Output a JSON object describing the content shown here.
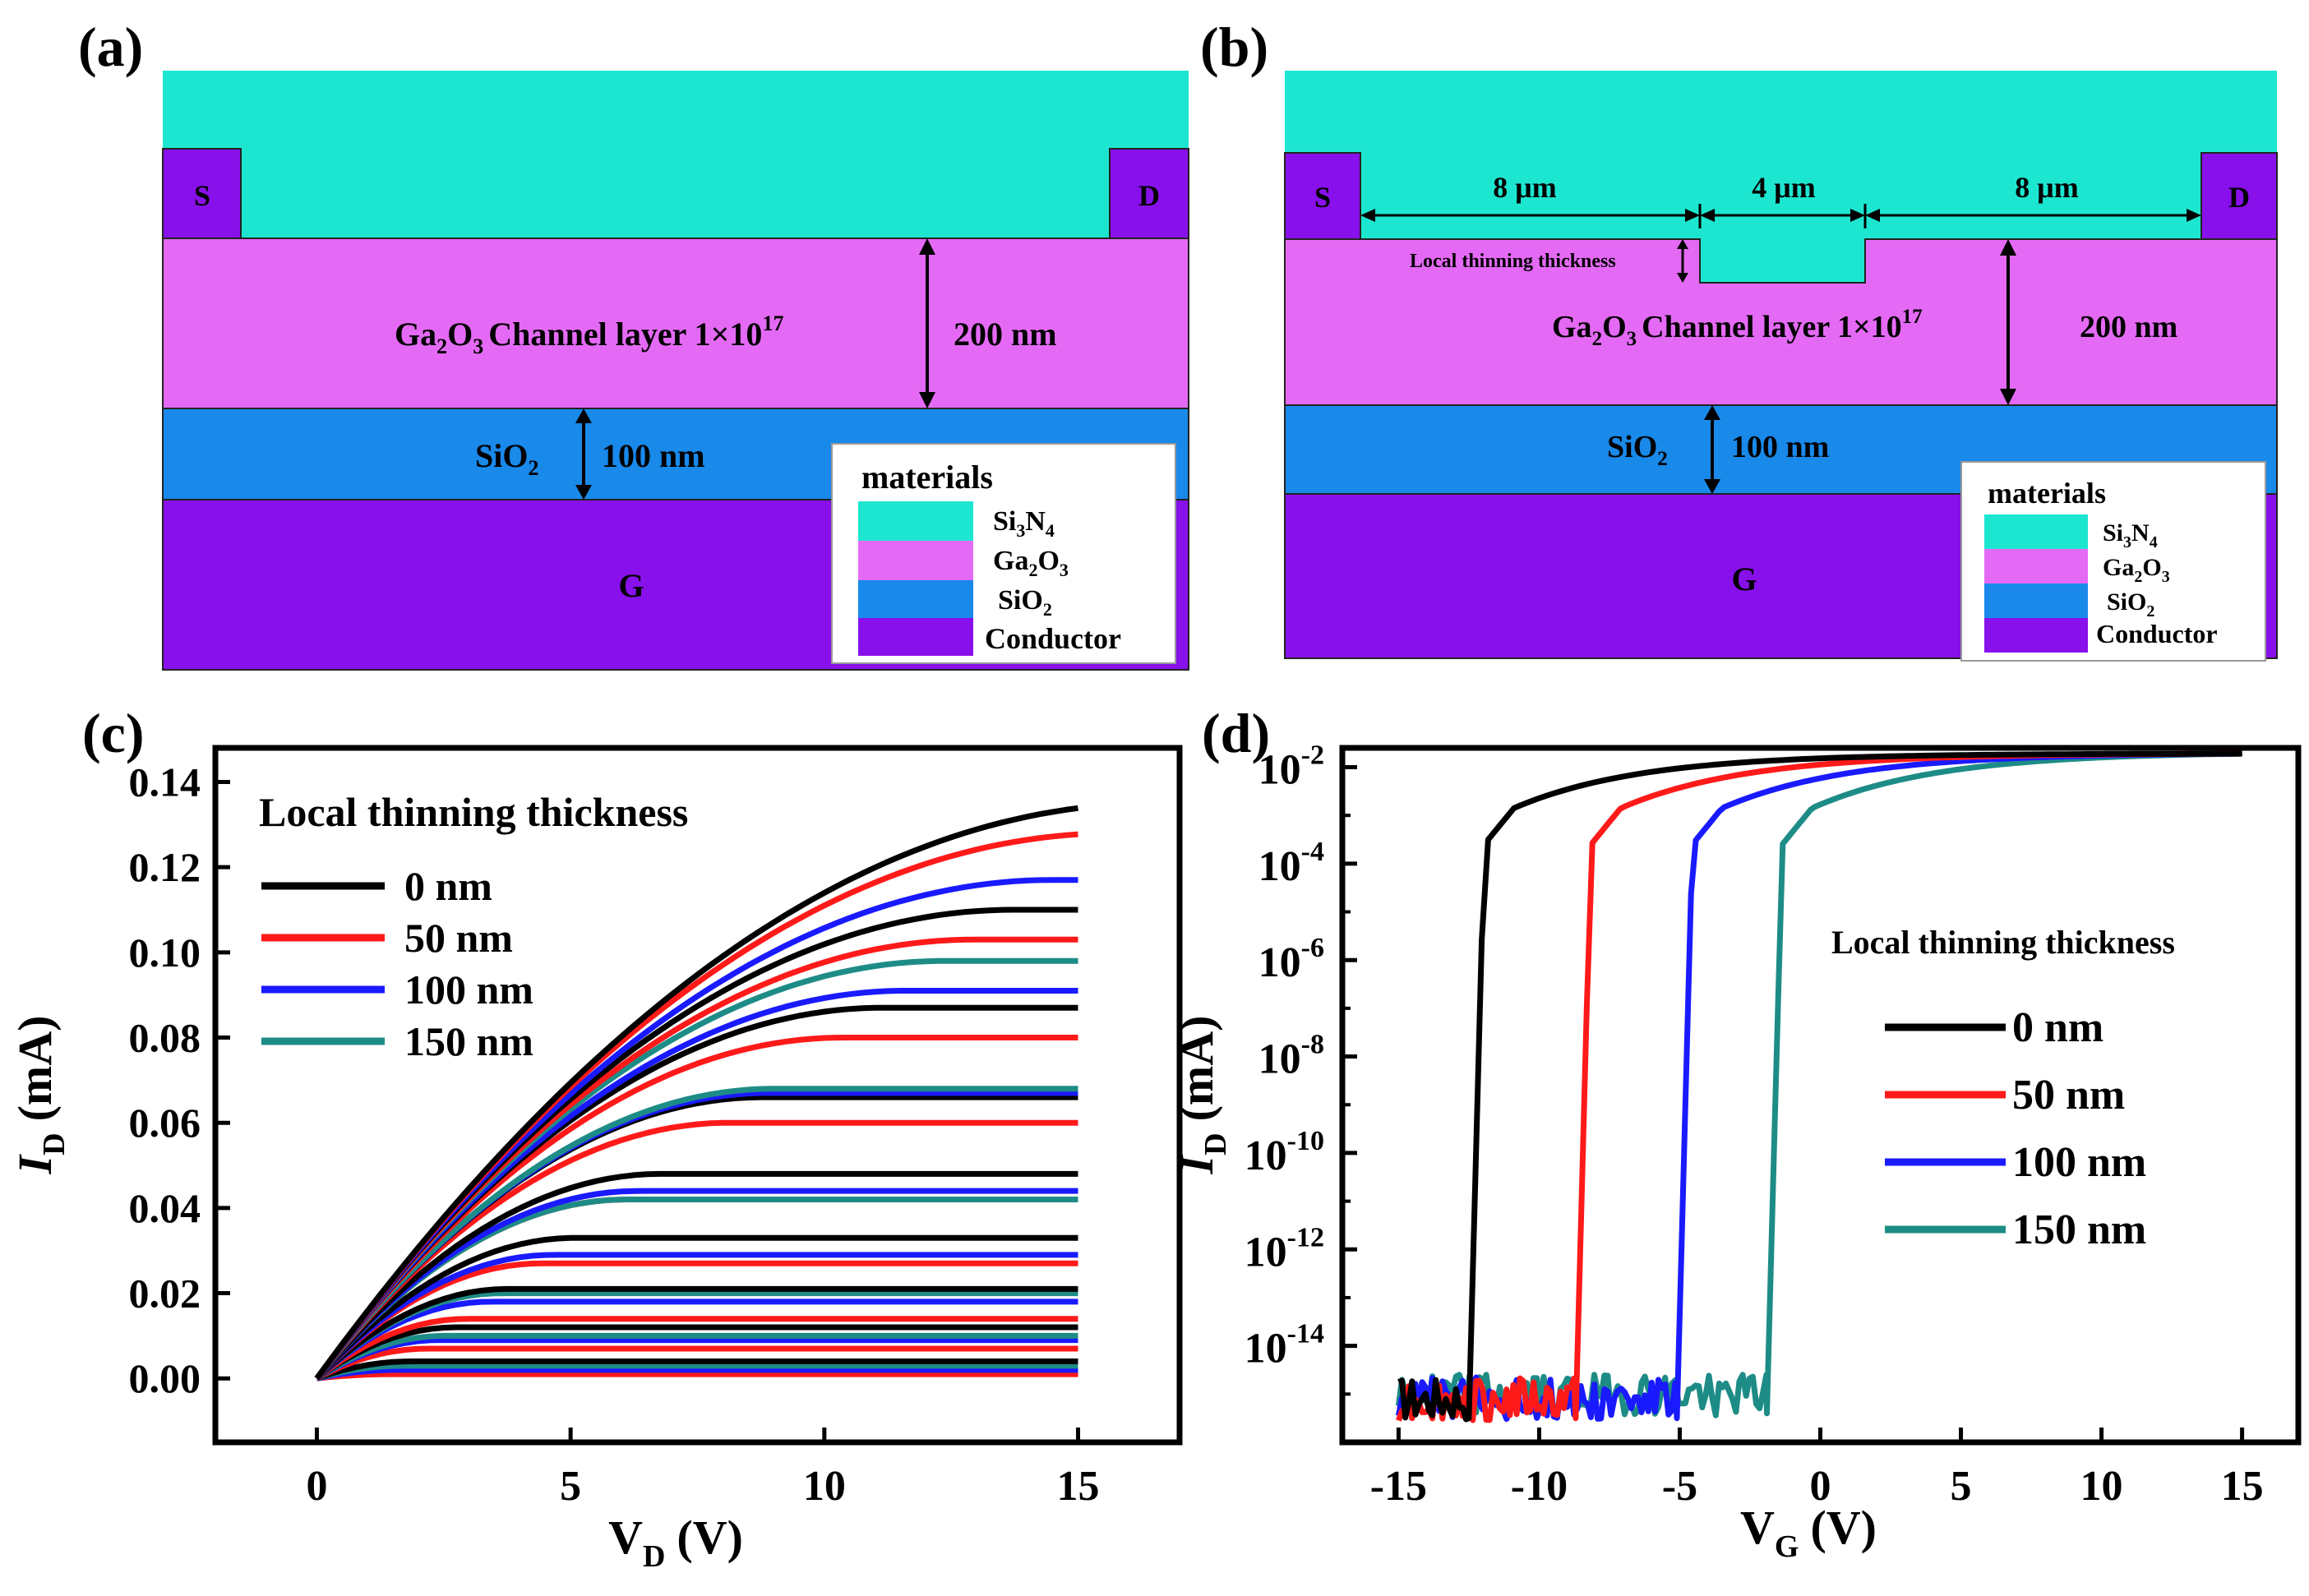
{
  "colors": {
    "si3n4": "#1de6d0",
    "ga2o3": "#e46af5",
    "sio2": "#1989ea",
    "conductor": "#8810ea",
    "series": [
      "#000000",
      "#ff1a1a",
      "#1a1aff",
      "#1e8c86"
    ]
  },
  "panel_a": {
    "label": "(a)",
    "source": "S",
    "drain": "D",
    "gate": "G",
    "channel_main": "Ga",
    "channel_sub2": "2",
    "channel_o": "O",
    "channel_sub3": "3",
    "channel_rest": "Channel layer 1×10",
    "channel_exp": "17",
    "thickness_channel": "200 nm",
    "oxide": "SiO",
    "oxide_sub": "2",
    "thickness_oxide": "100 nm"
  },
  "panel_b": {
    "label": "(b)",
    "source": "S",
    "drain": "D",
    "gate": "G",
    "dim_left": "8 μm",
    "dim_mid": "4 μm",
    "dim_right": "8 μm",
    "local_thinning": "Local thinning thickness",
    "channel_main": "Ga",
    "channel_sub2": "2",
    "channel_o": "O",
    "channel_sub3": "3",
    "channel_rest": "Channel layer 1×10",
    "channel_exp": "17",
    "thickness_channel": "200 nm",
    "oxide": "SiO",
    "oxide_sub": "2",
    "thickness_oxide": "100 nm"
  },
  "materials_legend": {
    "title": "materials",
    "si3n4": {
      "a": "Si",
      "b": "3",
      "c": "N",
      "d": "4"
    },
    "ga2o3": {
      "a": "Ga",
      "b": "2",
      "c": "O",
      "d": "3"
    },
    "sio2": {
      "a": "SiO",
      "b": "2"
    },
    "conductor": "Conductor"
  },
  "chart_data": [
    {
      "panel": "(c)",
      "type": "line",
      "xlabel": "V",
      "xlabel_sub": "D",
      "xlabel_unit": "(V)",
      "ylabel": "I",
      "ylabel_sub": "D",
      "ylabel_unit": "(mA)",
      "xlim": [
        -2,
        17
      ],
      "ylim": [
        -0.015,
        0.148
      ],
      "xticks": [
        0,
        5,
        10,
        15
      ],
      "xtick_labels": [
        "0",
        "5",
        "10",
        "15"
      ],
      "yticks": [
        0.0,
        0.02,
        0.04,
        0.06,
        0.08,
        0.1,
        0.12,
        0.14
      ],
      "ytick_labels": [
        "0.00",
        "0.02",
        "0.04",
        "0.06",
        "0.08",
        "0.10",
        "0.12",
        "0.14"
      ],
      "legend_title": "Local thinning thickness",
      "legend_position": "top-left",
      "series": [
        {
          "name": "0 nm",
          "saturation_values_at_15V": [
            0.135,
            0.11,
            0.087,
            0.066,
            0.048,
            0.033,
            0.021,
            0.012,
            0.004
          ]
        },
        {
          "name": "50 nm",
          "saturation_values_at_15V": [
            0.128,
            0.103,
            0.08,
            0.06,
            0.042,
            0.027,
            0.014,
            0.007,
            0.001
          ]
        },
        {
          "name": "100 nm",
          "saturation_values_at_15V": [
            0.117,
            0.091,
            0.067,
            0.044,
            0.029,
            0.018,
            0.009,
            0.002
          ]
        },
        {
          "name": "150 nm",
          "saturation_values_at_15V": [
            0.098,
            0.068,
            0.042,
            0.02,
            0.01,
            0.003
          ]
        }
      ]
    },
    {
      "panel": "(d)",
      "type": "line",
      "yscale": "log",
      "xlabel": "V",
      "xlabel_sub": "G",
      "xlabel_unit": "(V)",
      "ylabel": "I",
      "ylabel_sub": "D",
      "ylabel_unit": "(mA)",
      "xlim": [
        -17,
        17
      ],
      "ylim_log10": [
        -16.0,
        -1.6
      ],
      "xticks": [
        -15,
        -10,
        -5,
        0,
        5,
        10,
        15
      ],
      "xtick_labels": [
        "-15",
        "-10",
        "-5",
        "0",
        "5",
        "10",
        "15"
      ],
      "yticks_log10": [
        -2,
        -4,
        -6,
        -8,
        -10,
        -12,
        -14
      ],
      "ytick_exponents": [
        "-2",
        "-4",
        "-6",
        "-8",
        "-10",
        "-12",
        "-14"
      ],
      "ytick_base": "10",
      "legend_title": "Local thinning thickness",
      "legend_position": "center-right",
      "series": [
        {
          "name": "0 nm",
          "threshold_V": -12.5,
          "noise_floor_log10": -15.5,
          "max_log10": -1.72
        },
        {
          "name": "50 nm",
          "threshold_V": -8.7,
          "noise_floor_log10": -15.5,
          "max_log10": -1.72
        },
        {
          "name": "100 nm",
          "threshold_V": -5.1,
          "noise_floor_log10": -15.5,
          "max_log10": -1.72
        },
        {
          "name": "150 nm",
          "threshold_V": -1.9,
          "noise_floor_log10": -15.4,
          "max_log10": -1.72
        }
      ]
    }
  ]
}
